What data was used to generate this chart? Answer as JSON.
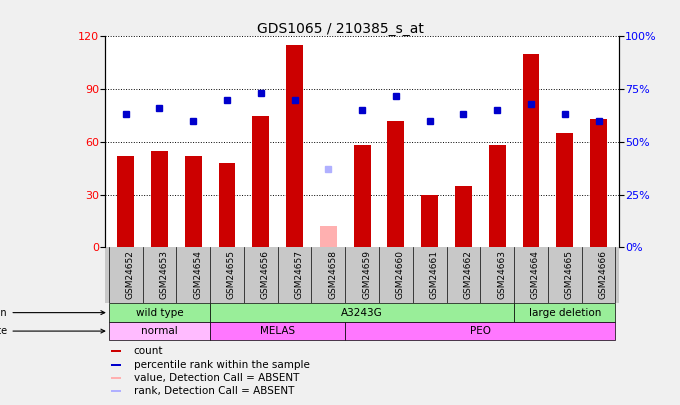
{
  "title": "GDS1065 / 210385_s_at",
  "samples": [
    "GSM24652",
    "GSM24653",
    "GSM24654",
    "GSM24655",
    "GSM24656",
    "GSM24657",
    "GSM24658",
    "GSM24659",
    "GSM24660",
    "GSM24661",
    "GSM24662",
    "GSM24663",
    "GSM24664",
    "GSM24665",
    "GSM24666"
  ],
  "counts": [
    52,
    55,
    52,
    48,
    75,
    115,
    12,
    58,
    72,
    30,
    35,
    58,
    110,
    65,
    73
  ],
  "absent_count_idx": 6,
  "absent_count_val": 12,
  "percentile_ranks": [
    63,
    66,
    60,
    70,
    73,
    70,
    37,
    65,
    72,
    60,
    63,
    65,
    68,
    63,
    60
  ],
  "absent_rank_idx": 6,
  "absent_rank_val": 37,
  "bar_color_normal": "#CC0000",
  "bar_color_absent": "#FFB0B0",
  "dot_color_normal": "#0000CC",
  "dot_color_absent": "#B0B0FF",
  "ylim_left": [
    0,
    120
  ],
  "ylim_right": [
    0,
    100
  ],
  "yticks_left": [
    0,
    30,
    60,
    90,
    120
  ],
  "yticks_right": [
    0,
    25,
    50,
    75,
    100
  ],
  "ytick_labels_right": [
    "0%",
    "25%",
    "50%",
    "75%",
    "100%"
  ],
  "geno_groups": [
    {
      "label": "wild type",
      "start": 0,
      "end": 2,
      "color": "#99EE99"
    },
    {
      "label": "A3243G",
      "start": 3,
      "end": 11,
      "color": "#99EE99"
    },
    {
      "label": "large deletion",
      "start": 12,
      "end": 14,
      "color": "#99EE99"
    }
  ],
  "disease_groups": [
    {
      "label": "normal",
      "start": 0,
      "end": 2,
      "color": "#FFBBFF"
    },
    {
      "label": "MELAS",
      "start": 3,
      "end": 6,
      "color": "#FF77FF"
    },
    {
      "label": "PEO",
      "start": 7,
      "end": 14,
      "color": "#FF77FF"
    }
  ],
  "legend_labels": [
    "count",
    "percentile rank within the sample",
    "value, Detection Call = ABSENT",
    "rank, Detection Call = ABSENT"
  ],
  "legend_colors": [
    "#CC0000",
    "#0000CC",
    "#FFB0B0",
    "#B0B0FF"
  ],
  "xlabel_bg": "#C8C8C8",
  "fig_bg": "#F0F0F0"
}
